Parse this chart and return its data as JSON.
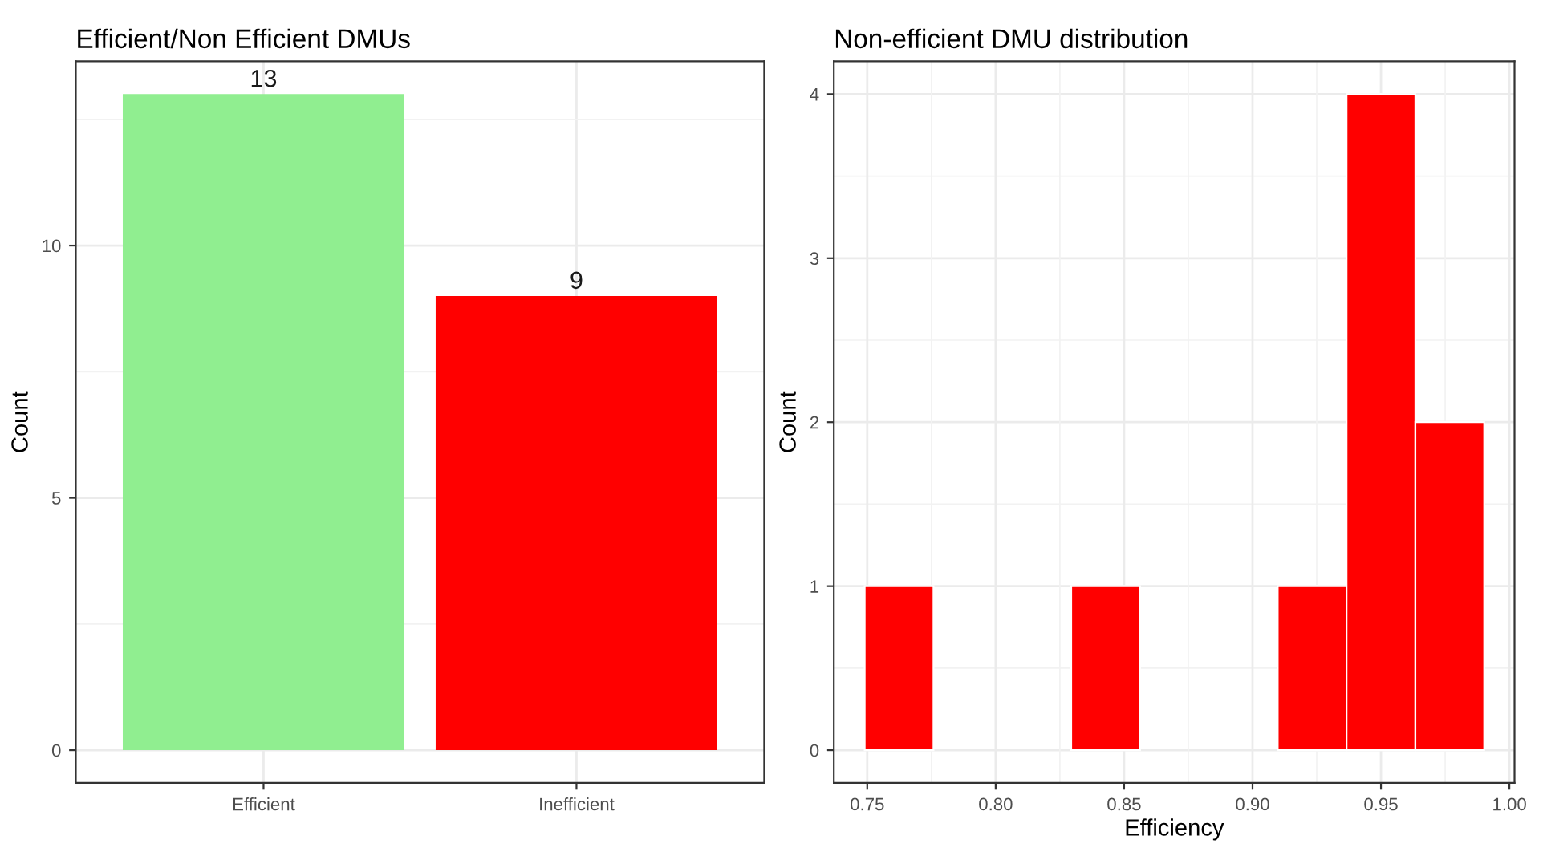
{
  "chart_data": [
    {
      "type": "bar",
      "title": "Efficient/Non Efficient DMUs",
      "ylabel": "Count",
      "categories": [
        "Efficient",
        "Inefficient"
      ],
      "values": [
        13,
        9
      ],
      "colors": [
        "#90ee90",
        "#ff0000"
      ],
      "data_labels": true,
      "ylim": [
        -0.65,
        13.65
      ],
      "yticks": [
        0,
        5,
        10
      ],
      "grid": true
    },
    {
      "type": "histogram",
      "title": "Non-efficient DMU distribution",
      "xlabel": "Efficiency",
      "ylabel": "Count",
      "bins": [
        0.749,
        0.7758,
        0.8026,
        0.8294,
        0.8562,
        0.883,
        0.9098,
        0.9366,
        0.9634,
        0.9902
      ],
      "values": [
        1,
        0,
        0,
        1,
        0,
        0,
        1,
        4,
        2
      ],
      "color": "#ff0000",
      "xlim": [
        0.737,
        1.002
      ],
      "xticks": [
        0.75,
        {
          "value": 0.8,
          "label": "0.80"
        },
        0.85,
        {
          "value": 0.9,
          "label": "0.90"
        },
        0.95,
        {
          "value": 1.0,
          "label": "1.00"
        }
      ],
      "ylim": [
        -0.2,
        4.2
      ],
      "yticks": [
        0,
        1,
        2,
        3,
        4
      ],
      "grid": true
    }
  ]
}
